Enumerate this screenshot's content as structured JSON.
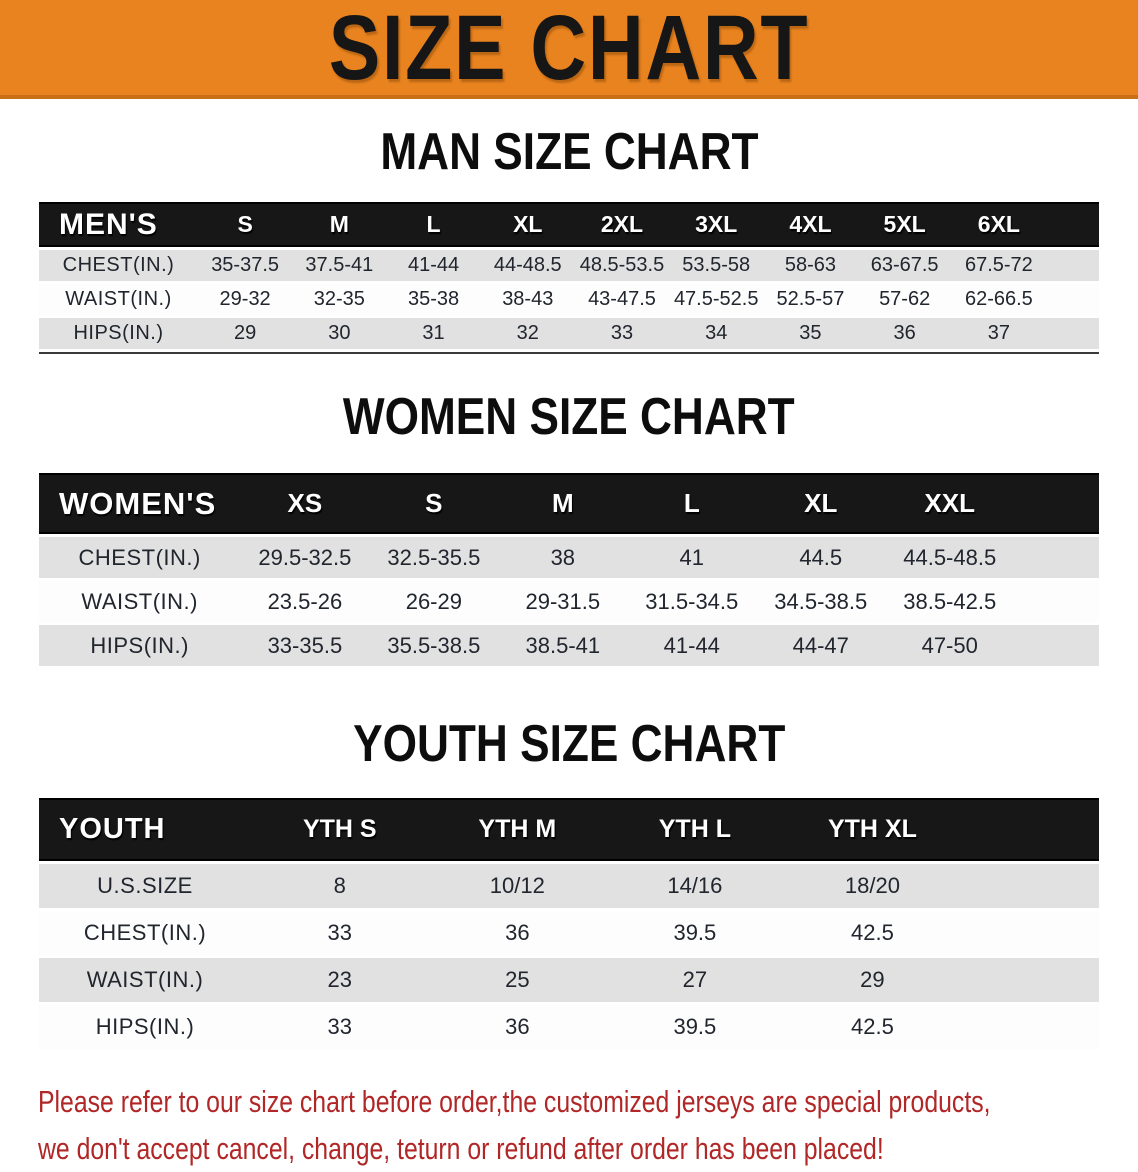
{
  "colors": {
    "banner_orange": "#E8831F",
    "table_header_black": "#171717",
    "row_stripe_gray": "#E1E1E1",
    "disclaimer_red": "#B12727"
  },
  "banner": {
    "title": "SIZE CHART"
  },
  "sections": {
    "men": {
      "heading": "MAN SIZE CHART",
      "table": {
        "label": "MEN'S",
        "columns": [
          "S",
          "M",
          "L",
          "XL",
          "2XL",
          "3XL",
          "4XL",
          "5XL",
          "6XL"
        ],
        "rows": [
          {
            "label": "CHEST(IN.)",
            "values": [
              "35-37.5",
              "37.5-41",
              "41-44",
              "44-48.5",
              "48.5-53.5",
              "53.5-58",
              "58-63",
              "63-67.5",
              "67.5-72"
            ]
          },
          {
            "label": "WAIST(IN.)",
            "values": [
              "29-32",
              "32-35",
              "35-38",
              "38-43",
              "43-47.5",
              "47.5-52.5",
              "52.5-57",
              "57-62",
              "62-66.5"
            ]
          },
          {
            "label": "HIPS(IN.)",
            "values": [
              "29",
              "30",
              "31",
              "32",
              "33",
              "34",
              "35",
              "36",
              "37"
            ]
          }
        ]
      }
    },
    "women": {
      "heading": "WOMEN SIZE CHART",
      "table": {
        "label": "WOMEN'S",
        "columns": [
          "XS",
          "S",
          "M",
          "L",
          "XL",
          "XXL"
        ],
        "rows": [
          {
            "label": "CHEST(IN.)",
            "values": [
              "29.5-32.5",
              "32.5-35.5",
              "38",
              "41",
              "44.5",
              "44.5-48.5"
            ]
          },
          {
            "label": "WAIST(IN.)",
            "values": [
              "23.5-26",
              "26-29",
              "29-31.5",
              "31.5-34.5",
              "34.5-38.5",
              "38.5-42.5"
            ]
          },
          {
            "label": "HIPS(IN.)",
            "values": [
              "33-35.5",
              "35.5-38.5",
              "38.5-41",
              "41-44",
              "44-47",
              "47-50"
            ]
          }
        ]
      }
    },
    "youth": {
      "heading": "YOUTH SIZE CHART",
      "table": {
        "label": "YOUTH",
        "columns": [
          "YTH S",
          "YTH M",
          "YTH L",
          "YTH XL"
        ],
        "rows": [
          {
            "label": "U.S.SIZE",
            "values": [
              "8",
              "10/12",
              "14/16",
              "18/20"
            ]
          },
          {
            "label": "CHEST(IN.)",
            "values": [
              "33",
              "36",
              "39.5",
              "42.5"
            ]
          },
          {
            "label": "WAIST(IN.)",
            "values": [
              "23",
              "25",
              "27",
              "29"
            ]
          },
          {
            "label": "HIPS(IN.)",
            "values": [
              "33",
              "36",
              "39.5",
              "42.5"
            ]
          }
        ]
      }
    }
  },
  "disclaimer": {
    "line1": "Please refer to our size chart before order,the customized jerseys are special products,",
    "line2": "we don't accept cancel, change, teturn or refund after order has been placed!"
  }
}
